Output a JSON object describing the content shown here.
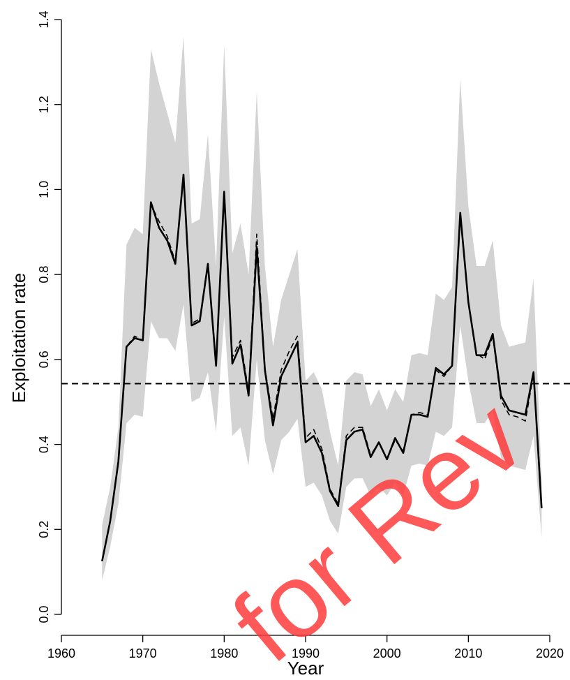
{
  "chart_data": {
    "type": "line",
    "title": "",
    "xlabel": "Year",
    "ylabel": "Exploitation rate",
    "xlim": [
      1960,
      2020
    ],
    "ylim": [
      0.0,
      1.4
    ],
    "xticks": [
      1960,
      1970,
      1980,
      1990,
      2000,
      2010,
      2020
    ],
    "yticks": [
      0.0,
      0.2,
      0.4,
      0.6,
      0.8,
      1.0,
      1.2,
      1.4
    ],
    "xtick_labels": [
      "1960",
      "1970",
      "1980",
      "1990",
      "2000",
      "2010",
      "2020"
    ],
    "ytick_labels": [
      "0.0",
      "0.2",
      "0.4",
      "0.6",
      "0.8",
      "1.0",
      "1.2",
      "1.4"
    ],
    "grid": false,
    "reference_line": {
      "y": 0.543,
      "style": "dashed"
    },
    "x": [
      1965,
      1966,
      1967,
      1968,
      1969,
      1970,
      1971,
      1972,
      1973,
      1974,
      1975,
      1976,
      1977,
      1978,
      1979,
      1980,
      1981,
      1982,
      1983,
      1984,
      1985,
      1986,
      1987,
      1988,
      1989,
      1990,
      1991,
      1992,
      1993,
      1994,
      1995,
      1996,
      1997,
      1998,
      1999,
      2000,
      2001,
      2002,
      2003,
      2004,
      2005,
      2006,
      2007,
      2008,
      2009,
      2010,
      2011,
      2012,
      2013,
      2014,
      2015,
      2016,
      2017,
      2018,
      2019
    ],
    "series": [
      {
        "style": "solid",
        "values": [
          0.125,
          0.22,
          0.36,
          0.63,
          0.65,
          0.645,
          0.97,
          0.91,
          0.88,
          0.825,
          1.035,
          0.68,
          0.69,
          0.825,
          0.585,
          0.995,
          0.59,
          0.635,
          0.515,
          0.865,
          0.575,
          0.445,
          0.56,
          0.6,
          0.64,
          0.405,
          0.42,
          0.38,
          0.29,
          0.255,
          0.41,
          0.43,
          0.435,
          0.37,
          0.405,
          0.365,
          0.415,
          0.38,
          0.47,
          0.47,
          0.465,
          0.58,
          0.565,
          0.585,
          0.945,
          0.735,
          0.61,
          0.61,
          0.66,
          0.515,
          0.48,
          0.475,
          0.47,
          0.57,
          0.25
        ]
      },
      {
        "style": "dashed",
        "values": [
          0.125,
          0.22,
          0.36,
          0.63,
          0.655,
          0.645,
          0.965,
          0.925,
          0.89,
          0.83,
          1.03,
          0.685,
          0.695,
          0.82,
          0.59,
          0.99,
          0.605,
          0.645,
          0.525,
          0.895,
          0.58,
          0.46,
          0.575,
          0.62,
          0.655,
          0.415,
          0.435,
          0.39,
          0.295,
          0.26,
          0.42,
          0.44,
          0.44,
          0.375,
          0.405,
          0.365,
          0.41,
          0.385,
          0.47,
          0.475,
          0.47,
          0.575,
          0.56,
          0.585,
          0.94,
          0.735,
          0.615,
          0.6,
          0.655,
          0.505,
          0.47,
          0.465,
          0.455,
          0.565,
          0.25
        ]
      }
    ],
    "band": {
      "upper": [
        0.21,
        0.3,
        0.44,
        0.87,
        0.91,
        0.895,
        1.33,
        1.25,
        1.18,
        1.11,
        1.36,
        0.92,
        0.93,
        1.13,
        0.82,
        1.34,
        0.85,
        0.92,
        0.8,
        1.23,
        0.82,
        0.63,
        0.74,
        0.8,
        0.86,
        0.55,
        0.57,
        0.53,
        0.43,
        0.35,
        0.55,
        0.57,
        0.565,
        0.49,
        0.53,
        0.48,
        0.53,
        0.5,
        0.61,
        0.615,
        0.61,
        0.755,
        0.74,
        0.77,
        1.26,
        0.96,
        0.82,
        0.82,
        0.88,
        0.68,
        0.63,
        0.635,
        0.64,
        0.79,
        0.32
      ],
      "lower": [
        0.08,
        0.16,
        0.26,
        0.45,
        0.47,
        0.465,
        0.69,
        0.65,
        0.65,
        0.62,
        0.73,
        0.5,
        0.51,
        0.57,
        0.43,
        0.7,
        0.42,
        0.44,
        0.35,
        0.6,
        0.41,
        0.33,
        0.41,
        0.43,
        0.46,
        0.3,
        0.31,
        0.28,
        0.22,
        0.19,
        0.3,
        0.32,
        0.32,
        0.28,
        0.3,
        0.28,
        0.31,
        0.28,
        0.35,
        0.355,
        0.35,
        0.43,
        0.42,
        0.44,
        0.68,
        0.55,
        0.45,
        0.45,
        0.48,
        0.37,
        0.35,
        0.345,
        0.34,
        0.42,
        0.18
      ]
    },
    "colors": {
      "line": "#000000",
      "band": "#d3d3d3",
      "watermark": "#ff3b3b"
    }
  },
  "watermark": {
    "text": "for Rev"
  }
}
